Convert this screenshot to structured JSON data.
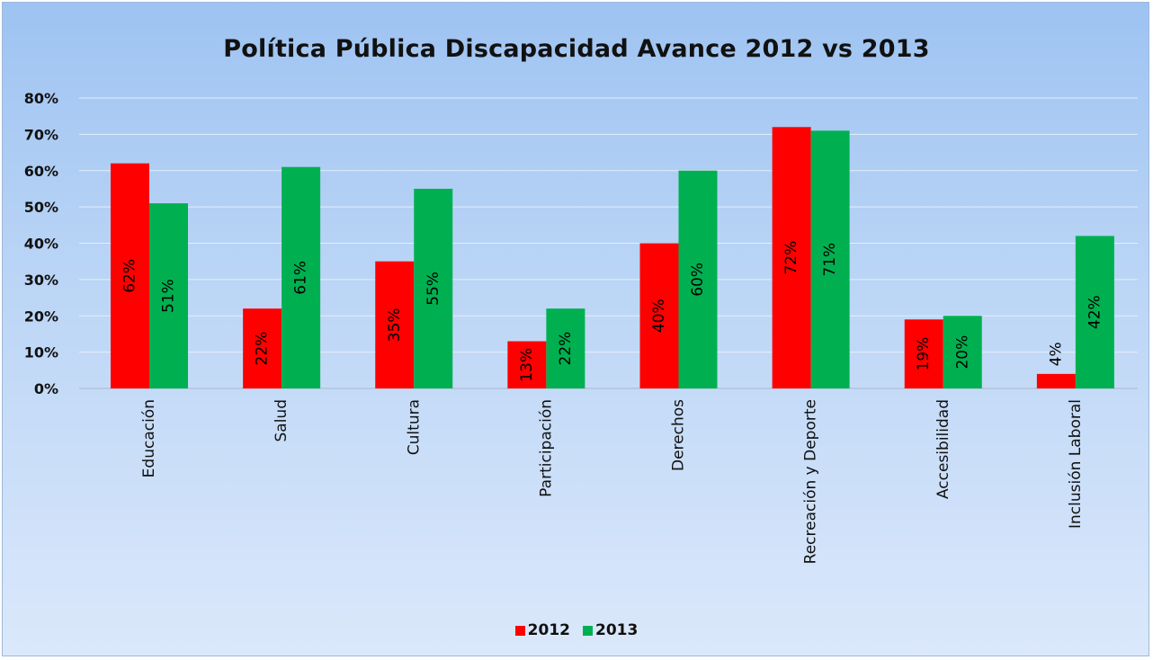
{
  "chart_data": {
    "type": "bar",
    "title": "Política Pública Discapacidad Avance 2012 vs 2013",
    "xlabel": "",
    "ylabel": "",
    "categories": [
      "Educación",
      "Salud",
      "Cultura",
      "Participación",
      "Derechos",
      "Recreación y Deporte",
      "Accesibilidad",
      "Inclusión Laboral"
    ],
    "series": [
      {
        "name": "2012",
        "color": "#ff0000",
        "values": [
          62,
          22,
          35,
          13,
          40,
          72,
          19,
          4
        ],
        "labels": [
          "62%",
          "22%",
          "35%",
          "13%",
          "40%",
          "72%",
          "19%",
          "4%"
        ]
      },
      {
        "name": "2013",
        "color": "#00b050",
        "values": [
          51,
          61,
          55,
          22,
          60,
          71,
          20,
          42
        ],
        "labels": [
          "51%",
          "61%",
          "55%",
          "22%",
          "60%",
          "71%",
          "20%",
          "42%"
        ]
      }
    ],
    "ylim": [
      0,
      80
    ],
    "yticks": [
      "0%",
      "10%",
      "20%",
      "30%",
      "40%",
      "50%",
      "60%",
      "70%",
      "80%"
    ],
    "grid": true,
    "legend_position": "bottom"
  }
}
